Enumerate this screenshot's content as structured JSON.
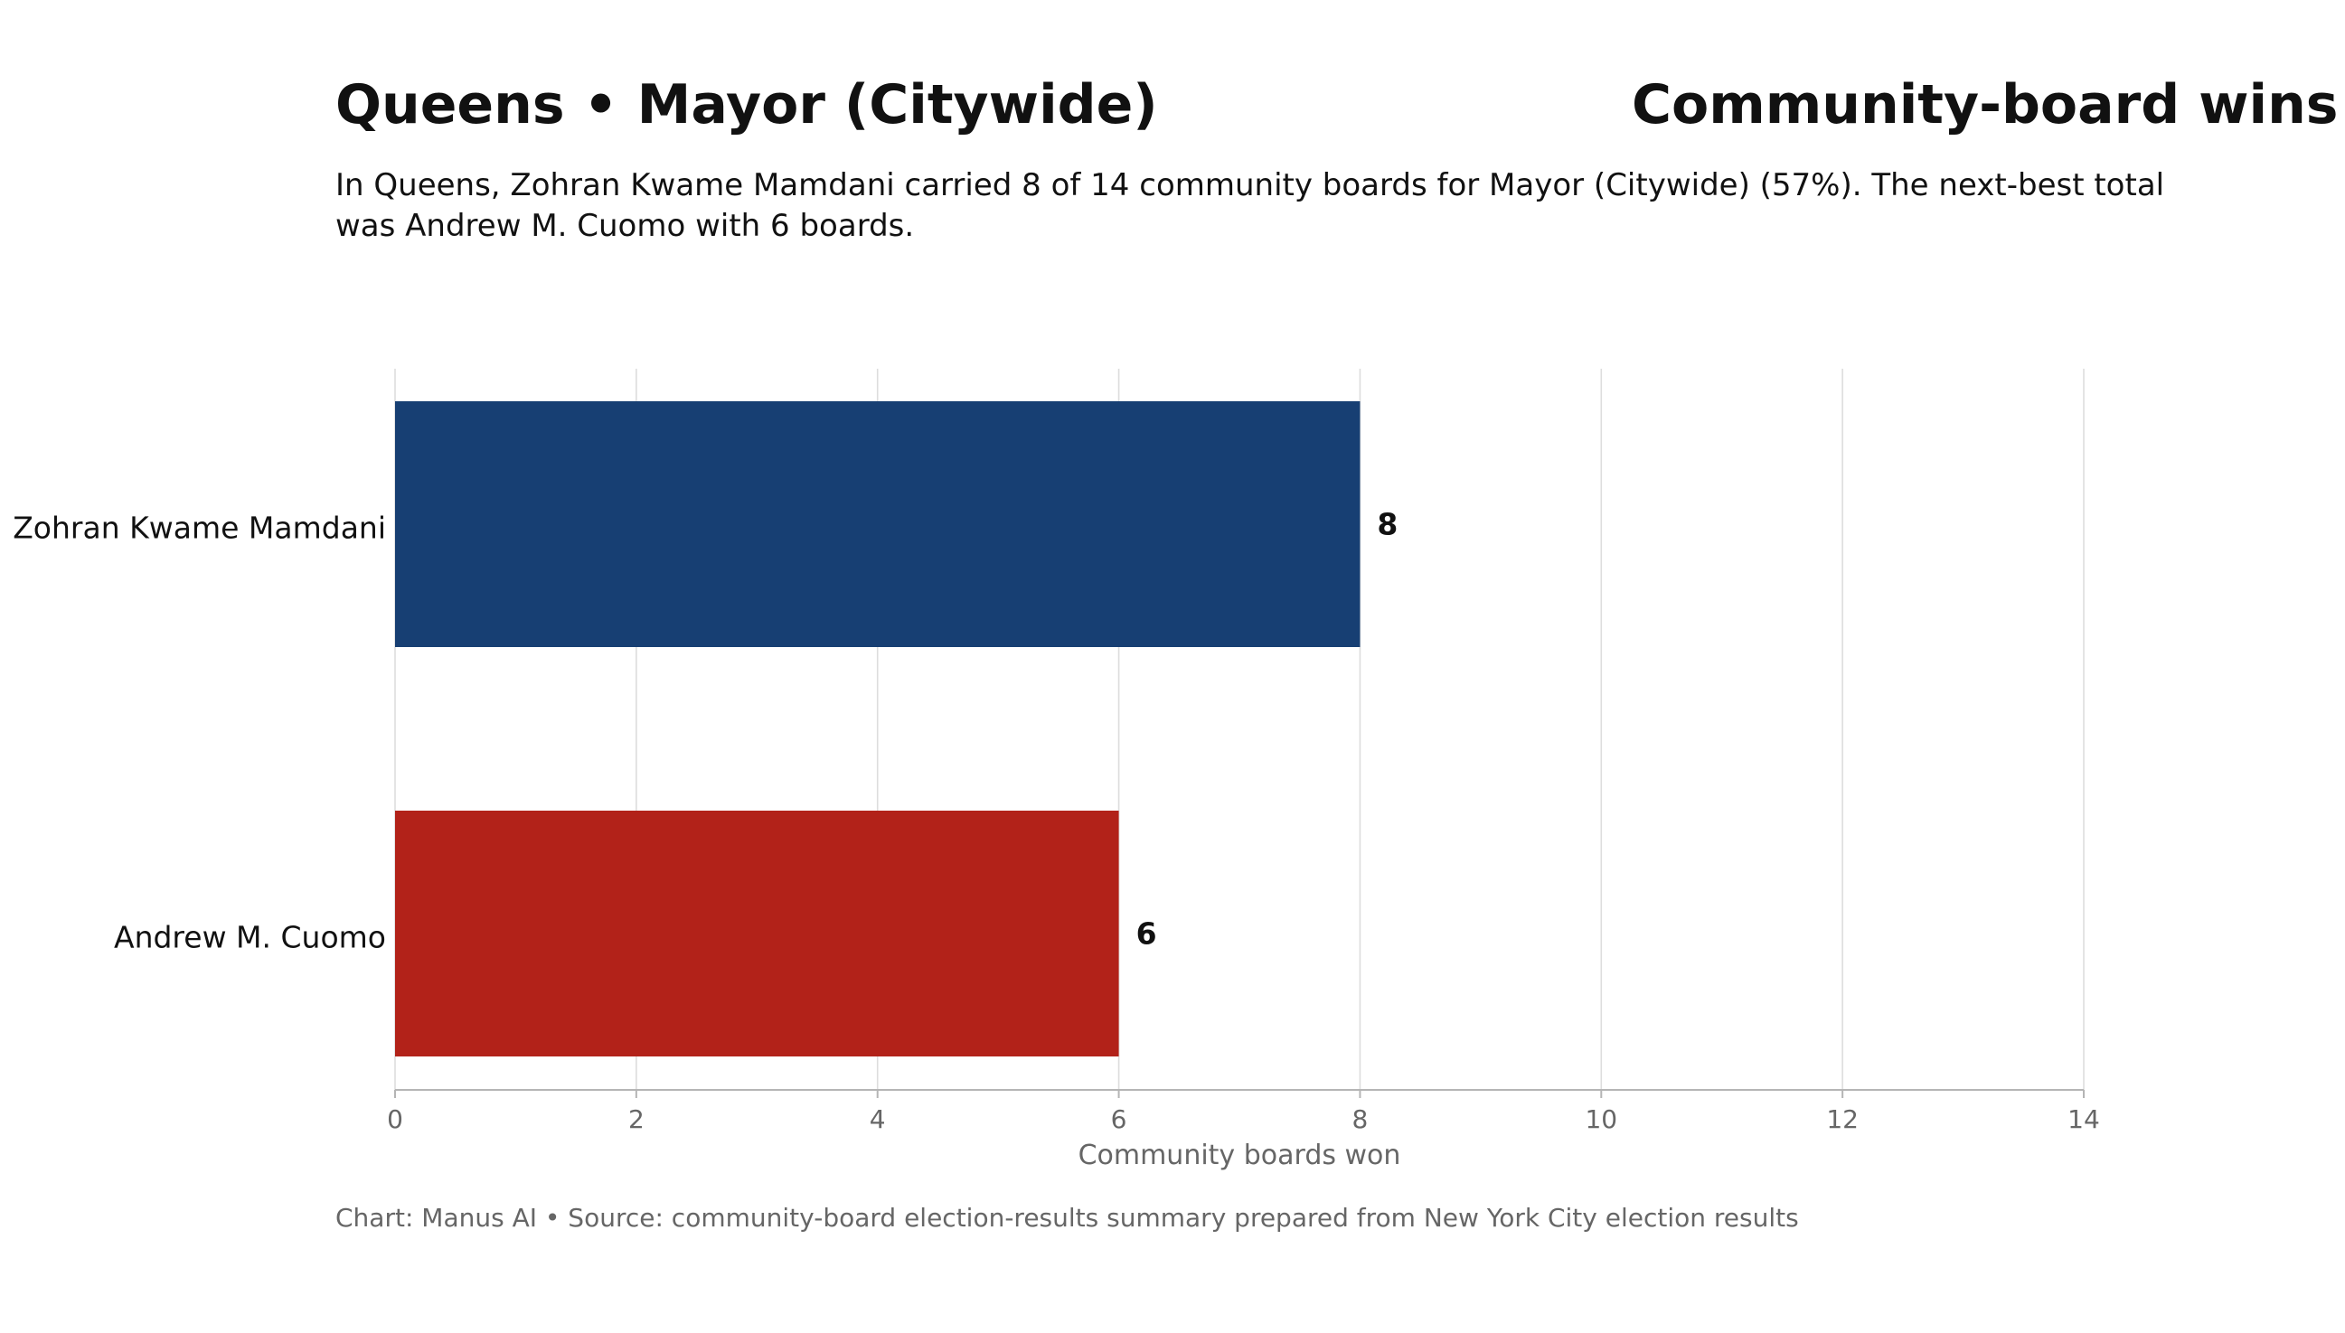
{
  "header": {
    "title_left": "Queens • Mayor (Citywide)",
    "title_right": "Community-board wins",
    "subtitle": "In Queens, Zohran Kwame Mamdani carried 8 of 14 community boards for Mayor (Citywide) (57%). The next-best total was Andrew M. Cuomo with 6 boards."
  },
  "footer": {
    "source": "Chart: Manus AI • Source: community-board election-results summary prepared from New York City election results"
  },
  "chart_data": {
    "type": "bar",
    "orientation": "horizontal",
    "title": "Queens • Mayor (Citywide)",
    "categories": [
      "Zohran Kwame Mamdani",
      "Andrew M. Cuomo"
    ],
    "values": [
      8,
      6
    ],
    "value_labels": [
      "8",
      "6"
    ],
    "colors": [
      "#173f73",
      "#b22219"
    ],
    "xlabel": "Community boards won",
    "ylabel": "",
    "xlim": [
      0,
      14
    ],
    "x_ticks": [
      0,
      2,
      4,
      6,
      8,
      10,
      12,
      14
    ],
    "grid": "vertical lines on",
    "gridline_color": "#dddddd",
    "legend": "none"
  }
}
